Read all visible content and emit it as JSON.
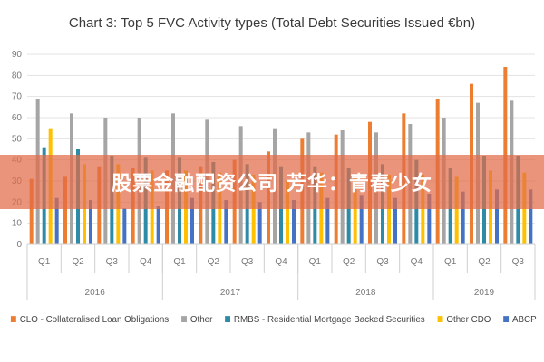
{
  "chart_data": {
    "type": "bar",
    "title": "Chart 3: Top 5 FVC Activity types (Total Debt Securities Issued €bn)",
    "xlabel": "",
    "ylabel": "",
    "ylim": [
      0,
      90
    ],
    "yticks": [
      0,
      10,
      20,
      30,
      40,
      50,
      60,
      70,
      80,
      90
    ],
    "grid": true,
    "legend_position": "bottom",
    "categories": [
      "Q1",
      "Q2",
      "Q3",
      "Q4",
      "Q1",
      "Q2",
      "Q3",
      "Q4",
      "Q1",
      "Q2",
      "Q3",
      "Q4",
      "Q1",
      "Q2",
      "Q3"
    ],
    "year_groups": [
      {
        "label": "2016",
        "quarters": 4
      },
      {
        "label": "2017",
        "quarters": 4
      },
      {
        "label": "2018",
        "quarters": 4
      },
      {
        "label": "2019",
        "quarters": 3
      }
    ],
    "series": [
      {
        "name": "CLO - Collateralised Loan Obligations",
        "color": "#ED7D31",
        "values": [
          31,
          32,
          37,
          36,
          35,
          37,
          40,
          44,
          50,
          52,
          58,
          62,
          69,
          76,
          84
        ]
      },
      {
        "name": "Other",
        "color": "#A5A5A5",
        "values": [
          69,
          62,
          60,
          60,
          62,
          59,
          56,
          55,
          53,
          54,
          53,
          57,
          60,
          67,
          68
        ]
      },
      {
        "name": "RMBS - Residential Mortgage Backed Securities",
        "color": "#2E8BA8",
        "values": [
          46,
          45,
          42,
          41,
          41,
          39,
          38,
          37,
          37,
          36,
          38,
          40,
          36,
          42,
          42
        ]
      },
      {
        "name": "Other CDO",
        "color": "#FFC000",
        "values": [
          55,
          38,
          38,
          35,
          35,
          34,
          33,
          30,
          34,
          32,
          33,
          33,
          32,
          35,
          34
        ]
      },
      {
        "name": "ABCP",
        "color": "#4472C4",
        "values": [
          22,
          21,
          17,
          18,
          22,
          21,
          20,
          21,
          22,
          23,
          22,
          24,
          25,
          26,
          26
        ]
      }
    ]
  },
  "banner": {
    "text": "股票金融配资公司 芳华：青春少女"
  }
}
